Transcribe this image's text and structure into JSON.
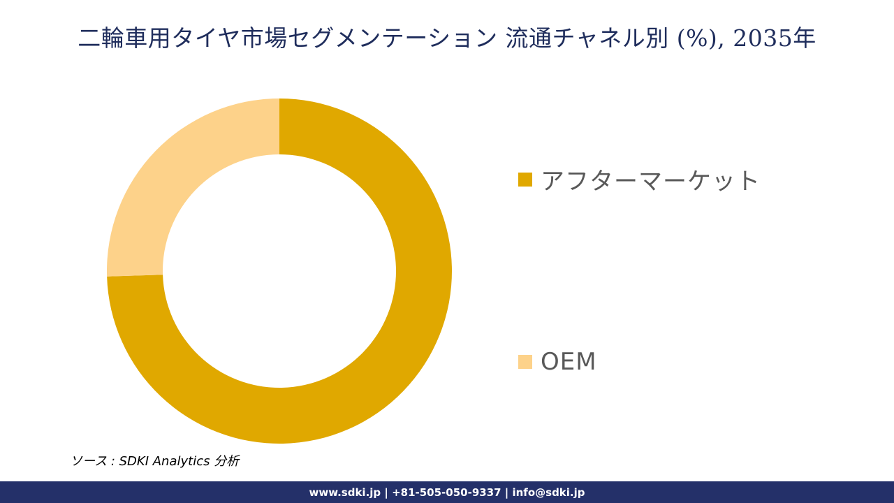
{
  "chart_data": {
    "type": "pie",
    "title": "二輪車用タイヤ市場セグメンテーション 流通チャネル別 (%), 2035年",
    "donut": true,
    "categories": [
      "アフターマーケット",
      "OEM"
    ],
    "values": [
      74.5,
      25.5
    ],
    "colors": [
      "#E0A800",
      "#FDD28A"
    ],
    "legend_position": "right"
  },
  "source": "ソース : SDKI Analytics 分析",
  "footer": {
    "contact": "www.sdki.jp | +81-505-050-9337 | info@sdki.jp"
  },
  "colors": {
    "title": "#1F2D5C",
    "footer_bg": "#243069"
  }
}
